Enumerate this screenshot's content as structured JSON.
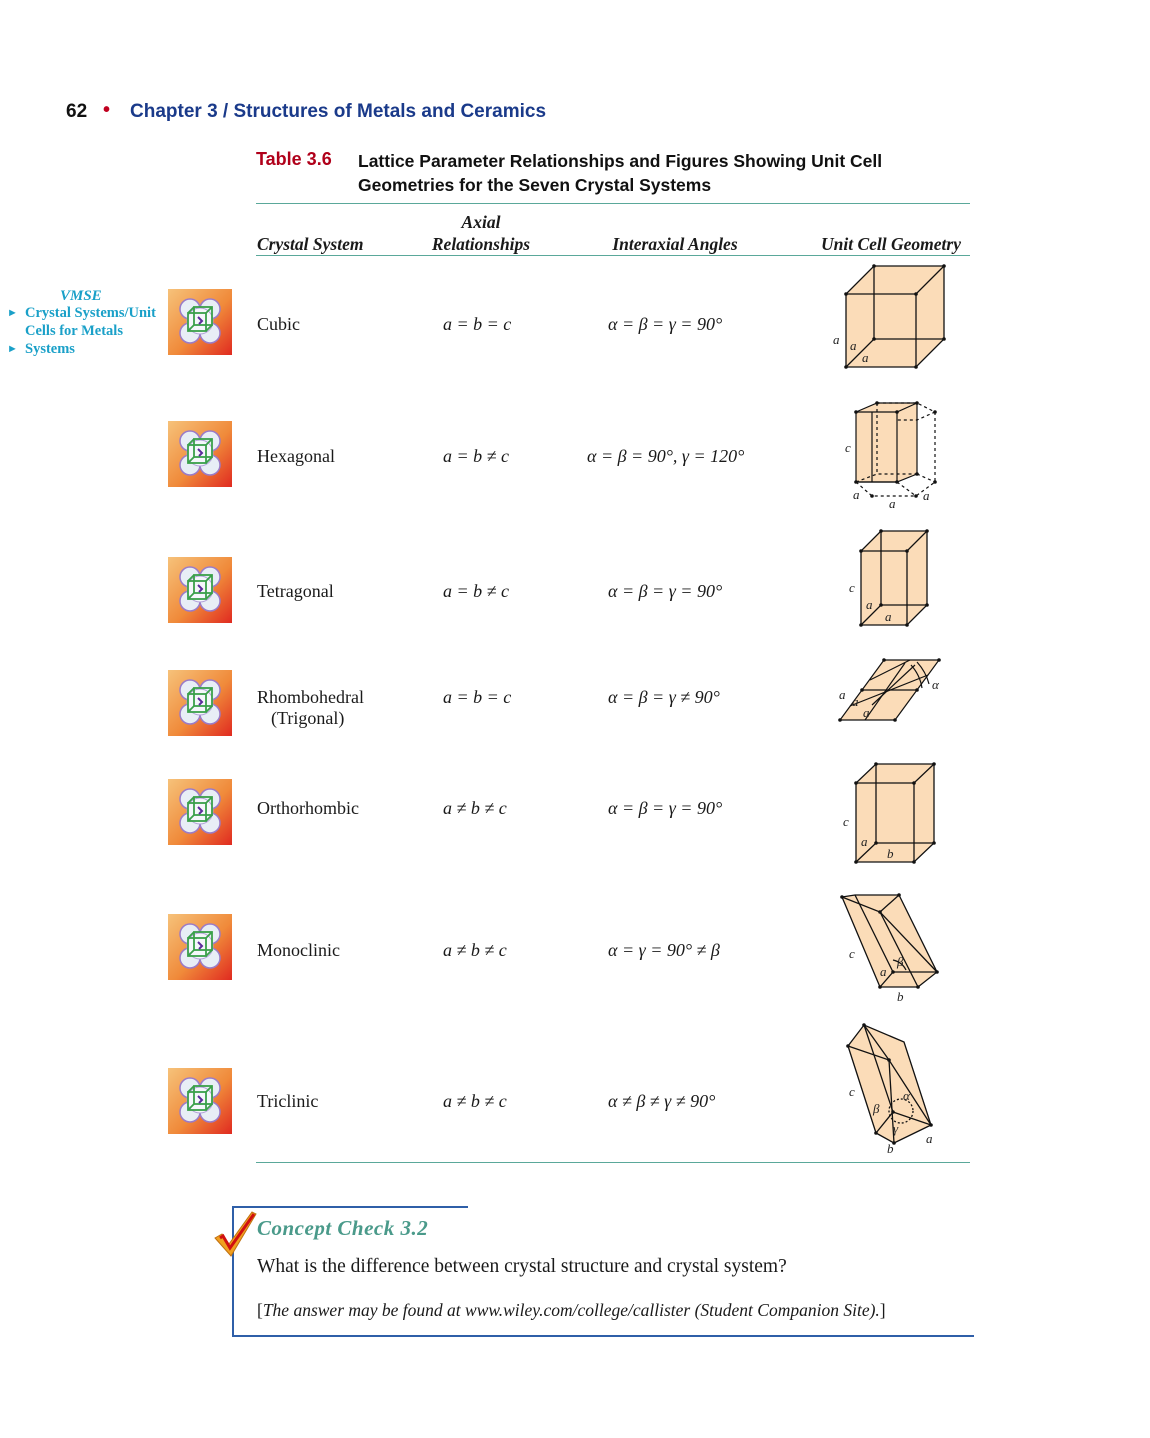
{
  "header": {
    "page_number": "62",
    "bullet": "•",
    "chapter_title": "Chapter 3  /  Structures of Metals and Ceramics"
  },
  "table": {
    "label": "Table 3.6",
    "title": "Lattice Parameter Relationships and Figures Showing Unit Cell Geometries for the Seven Crystal Systems",
    "columns": {
      "system": "Crystal System",
      "axial_line1": "Axial",
      "axial_line2": "Relationships",
      "angles": "Interaxial Angles",
      "geometry": "Unit Cell Geometry"
    },
    "rows": [
      {
        "system": "Cubic",
        "axial": "a = b = c",
        "angles": "α = β = γ = 90°",
        "labels": [
          "a",
          "a",
          "a"
        ]
      },
      {
        "system": "Hexagonal",
        "axial": "a = b ≠ c",
        "angles": "α = β = 90°, γ = 120°",
        "labels": [
          "c",
          "a",
          "a",
          "a"
        ]
      },
      {
        "system": "Tetragonal",
        "axial": "a = b ≠ c",
        "angles": "α = β = γ = 90°",
        "labels": [
          "c",
          "a",
          "a"
        ]
      },
      {
        "system": "Rhombohedral",
        "system_line2": "(Trigonal)",
        "axial": "a = b = c",
        "angles": "α = β = γ ≠ 90°",
        "labels": [
          "a",
          "a",
          "a",
          "α"
        ]
      },
      {
        "system": "Orthorhombic",
        "axial": "a ≠ b ≠ c",
        "angles": "α = β = γ = 90°",
        "labels": [
          "c",
          "a",
          "b"
        ]
      },
      {
        "system": "Monoclinic",
        "axial": "a ≠ b ≠ c",
        "angles": "α = γ = 90° ≠ β",
        "labels": [
          "c",
          "a",
          "β",
          "b"
        ]
      },
      {
        "system": "Triclinic",
        "axial": "a ≠ b ≠ c",
        "angles": "α ≠ β ≠ γ ≠ 90°",
        "labels": [
          "c",
          "β",
          "α",
          "γ",
          "a",
          "b"
        ]
      }
    ]
  },
  "vmse": {
    "title": "VMSE",
    "links": [
      "Crystal Systems/Unit",
      "Cells for Metals",
      "Systems"
    ],
    "arrow": "►"
  },
  "concept_check": {
    "title": "Concept Check 3.2",
    "question": "What is the difference between crystal structure and crystal system?",
    "answer_open": "[",
    "answer_text": "The answer may be found at www.wiley.com/college/callister (Student Companion Site).",
    "answer_close": "]"
  },
  "colors": {
    "header_blue": "#1a3a8a",
    "table_label_red": "#b0001a",
    "rule_teal": "#5aa89a",
    "vmse_cyan": "#1aa0c8",
    "cell_fill": "#fbdcb8",
    "concept_blue": "#2f5fa8"
  },
  "icons": [
    "vmse-crystal-icon",
    "checkmark-icon"
  ]
}
